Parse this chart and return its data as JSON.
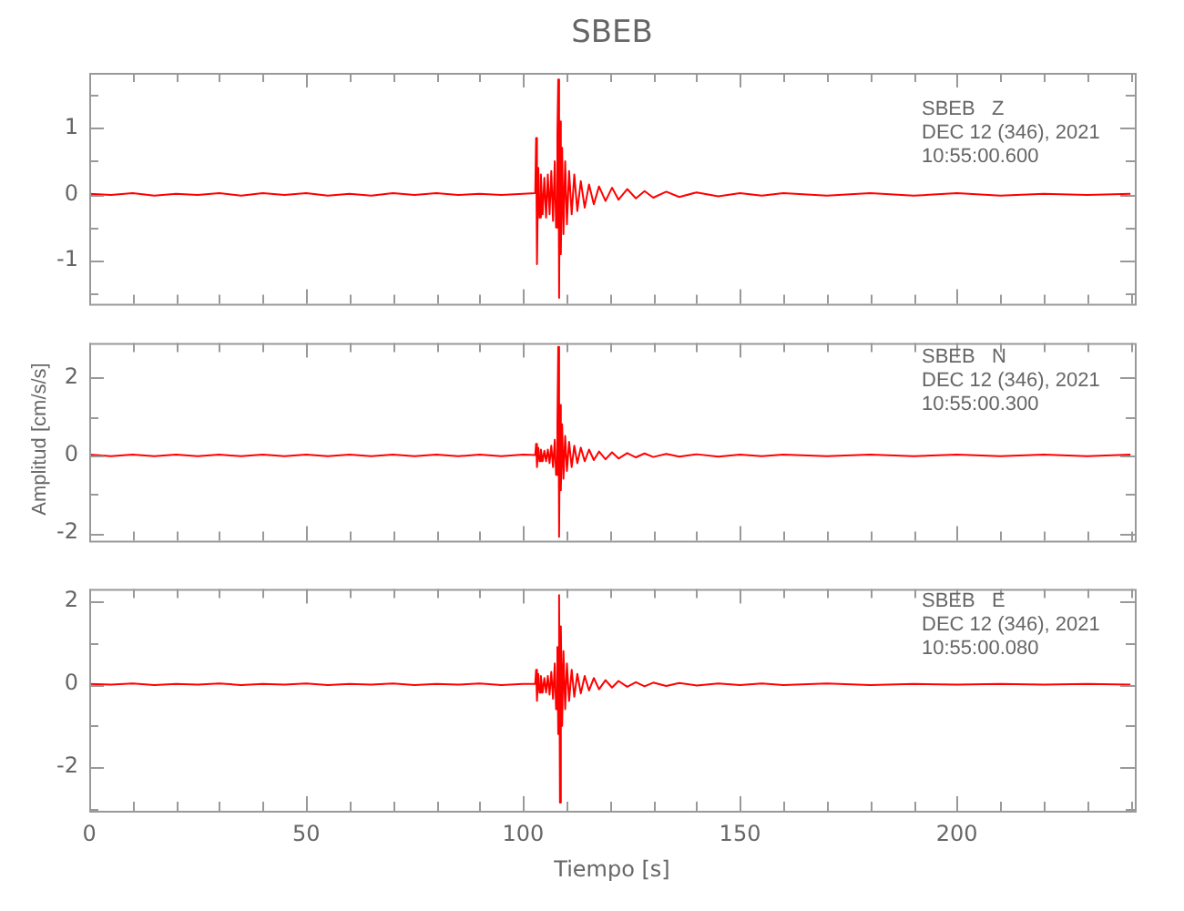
{
  "chart_data": [
    {
      "type": "line",
      "title": "SBEB",
      "annotations": [
        "SBEB   Z",
        "DEC 12 (346), 2021",
        "10:55:00.600"
      ],
      "tick_labels": "y",
      "grid": false,
      "legend": false,
      "xlim": [
        0,
        241
      ],
      "xticks": [
        0,
        {
          "value": 10,
          "label": null
        },
        {
          "value": 20,
          "label": null
        },
        {
          "value": 30,
          "label": null
        },
        {
          "value": 40,
          "label": null
        },
        50,
        {
          "value": 60,
          "label": null
        },
        {
          "value": 70,
          "label": null
        },
        {
          "value": 80,
          "label": null
        },
        {
          "value": 90,
          "label": null
        },
        100,
        {
          "value": 110,
          "label": null
        },
        {
          "value": 120,
          "label": null
        },
        {
          "value": 130,
          "label": null
        },
        {
          "value": 140,
          "label": null
        },
        150,
        {
          "value": 160,
          "label": null
        },
        {
          "value": 170,
          "label": null
        },
        {
          "value": 180,
          "label": null
        },
        {
          "value": 190,
          "label": null
        },
        200,
        {
          "value": 210,
          "label": null
        },
        {
          "value": 220,
          "label": null
        },
        {
          "value": 230,
          "label": null
        },
        {
          "value": 240,
          "label": null
        }
      ],
      "ylim": [
        -1.65,
        1.83
      ],
      "yticks": [
        {
          "value": -1.5,
          "label": null
        },
        -1,
        {
          "value": -0.5,
          "label": null
        },
        0,
        {
          "value": 0.5,
          "label": null
        },
        1,
        {
          "value": 1.5,
          "label": null
        }
      ],
      "x": [
        0,
        5,
        10,
        15,
        20,
        25,
        30,
        35,
        40,
        45,
        50,
        55,
        60,
        65,
        70,
        75,
        80,
        85,
        90,
        95,
        100,
        102.8,
        103.0,
        103.2,
        103.5,
        103.8,
        104.1,
        104.5,
        104.9,
        105.3,
        105.7,
        106.1,
        106.5,
        106.9,
        107.3,
        107.6,
        107.9,
        108.1,
        108.3,
        108.5,
        108.7,
        109,
        109.3,
        109.7,
        110.1,
        110.6,
        111.2,
        111.8,
        112.5,
        113.3,
        114.2,
        115.2,
        116.3,
        117.5,
        119,
        120.5,
        122,
        124,
        126,
        128,
        130,
        133,
        136,
        140,
        145,
        150,
        155,
        160,
        170,
        180,
        190,
        200,
        210,
        220,
        230,
        240
      ],
      "series": [
        {
          "color": "#ff0000",
          "values": [
            0.01,
            -0.01,
            0.02,
            -0.02,
            0.01,
            -0.01,
            0.02,
            -0.02,
            0.02,
            -0.01,
            0.02,
            -0.02,
            0.01,
            -0.02,
            0.02,
            -0.01,
            0.02,
            -0.01,
            0.01,
            -0.01,
            0.01,
            0.02,
            0.85,
            -1.05,
            0.4,
            -0.35,
            0.3,
            -0.3,
            0.25,
            -0.35,
            0.3,
            -0.3,
            0.35,
            -0.4,
            0.5,
            -0.5,
            0.9,
            1.73,
            -1.56,
            1.1,
            -0.9,
            0.7,
            -0.6,
            0.5,
            -0.45,
            0.35,
            -0.3,
            0.3,
            -0.25,
            0.2,
            -0.2,
            0.15,
            -0.15,
            0.12,
            -0.1,
            0.1,
            -0.08,
            0.08,
            -0.06,
            0.05,
            -0.05,
            0.04,
            -0.04,
            0.03,
            -0.03,
            0.02,
            -0.02,
            0.02,
            -0.02,
            0.02,
            -0.02,
            0.02,
            -0.02,
            0.01,
            -0.01,
            0.01
          ]
        }
      ]
    },
    {
      "type": "line",
      "ylabel": "Amplitud [cm/s/s]",
      "annotations": [
        "SBEB   N",
        "DEC 12 (346), 2021",
        "10:55:00.300"
      ],
      "tick_labels": "y",
      "grid": false,
      "legend": false,
      "xlim": [
        0,
        241
      ],
      "xticks": [
        0,
        {
          "value": 10,
          "label": null
        },
        {
          "value": 20,
          "label": null
        },
        {
          "value": 30,
          "label": null
        },
        {
          "value": 40,
          "label": null
        },
        50,
        {
          "value": 60,
          "label": null
        },
        {
          "value": 70,
          "label": null
        },
        {
          "value": 80,
          "label": null
        },
        {
          "value": 90,
          "label": null
        },
        100,
        {
          "value": 110,
          "label": null
        },
        {
          "value": 120,
          "label": null
        },
        {
          "value": 130,
          "label": null
        },
        {
          "value": 140,
          "label": null
        },
        150,
        {
          "value": 160,
          "label": null
        },
        {
          "value": 170,
          "label": null
        },
        {
          "value": 180,
          "label": null
        },
        {
          "value": 190,
          "label": null
        },
        200,
        {
          "value": 210,
          "label": null
        },
        {
          "value": 220,
          "label": null
        },
        {
          "value": 230,
          "label": null
        },
        {
          "value": 240,
          "label": null
        }
      ],
      "ylim": [
        -2.2,
        2.9
      ],
      "yticks": [
        -2,
        {
          "value": -1,
          "label": null
        },
        0,
        {
          "value": 1,
          "label": null
        },
        2
      ],
      "x": [
        0,
        5,
        10,
        15,
        20,
        25,
        30,
        35,
        40,
        45,
        50,
        55,
        60,
        65,
        70,
        75,
        80,
        85,
        90,
        95,
        100,
        102.8,
        103.0,
        103.2,
        103.5,
        103.8,
        104.1,
        104.5,
        104.9,
        105.3,
        105.7,
        106.1,
        106.5,
        106.9,
        107.3,
        107.6,
        107.9,
        108.1,
        108.3,
        108.5,
        108.7,
        109,
        109.3,
        109.7,
        110.1,
        110.6,
        111.2,
        111.8,
        112.5,
        113.3,
        114.2,
        115.2,
        116.3,
        117.5,
        119,
        120.5,
        122,
        124,
        126,
        128,
        130,
        133,
        136,
        140,
        145,
        150,
        155,
        160,
        170,
        180,
        190,
        200,
        210,
        220,
        230,
        240
      ],
      "series": [
        {
          "color": "#ff0000",
          "values": [
            0.02,
            -0.02,
            0.02,
            -0.02,
            0.02,
            -0.02,
            0.02,
            -0.02,
            0.02,
            -0.02,
            0.02,
            -0.02,
            0.02,
            -0.02,
            0.02,
            -0.02,
            0.02,
            -0.02,
            0.02,
            -0.02,
            0.02,
            0.01,
            0.3,
            -0.3,
            0.2,
            -0.15,
            0.15,
            -0.15,
            0.12,
            -0.15,
            0.15,
            -0.2,
            0.25,
            -0.3,
            0.4,
            -0.5,
            0.8,
            2.8,
            -2.1,
            1.3,
            -0.9,
            0.8,
            -0.6,
            0.5,
            -0.4,
            0.35,
            -0.3,
            0.25,
            -0.2,
            0.2,
            -0.15,
            0.15,
            -0.12,
            0.1,
            -0.1,
            0.08,
            -0.08,
            0.06,
            -0.05,
            0.05,
            -0.04,
            0.04,
            -0.03,
            0.03,
            -0.03,
            0.02,
            -0.02,
            0.02,
            -0.02,
            0.02,
            -0.02,
            0.02,
            -0.02,
            0.02,
            -0.02,
            0.02
          ]
        }
      ]
    },
    {
      "type": "line",
      "xlabel": "Tiempo [s]",
      "annotations": [
        "SBEB   E",
        "DEC 12 (346), 2021",
        "10:55:00.080"
      ],
      "grid": false,
      "legend": false,
      "xlim": [
        0,
        241
      ],
      "xticks": [
        0,
        {
          "value": 10,
          "label": null
        },
        {
          "value": 20,
          "label": null
        },
        {
          "value": 30,
          "label": null
        },
        {
          "value": 40,
          "label": null
        },
        50,
        {
          "value": 60,
          "label": null
        },
        {
          "value": 70,
          "label": null
        },
        {
          "value": 80,
          "label": null
        },
        {
          "value": 90,
          "label": null
        },
        100,
        {
          "value": 110,
          "label": null
        },
        {
          "value": 120,
          "label": null
        },
        {
          "value": 130,
          "label": null
        },
        {
          "value": 140,
          "label": null
        },
        150,
        {
          "value": 160,
          "label": null
        },
        {
          "value": 170,
          "label": null
        },
        {
          "value": 180,
          "label": null
        },
        {
          "value": 190,
          "label": null
        },
        200,
        {
          "value": 210,
          "label": null
        },
        {
          "value": 220,
          "label": null
        },
        {
          "value": 230,
          "label": null
        },
        {
          "value": 240,
          "label": null
        }
      ],
      "ylim": [
        -3.05,
        2.3
      ],
      "yticks": [
        {
          "value": -3,
          "label": null
        },
        -2,
        {
          "value": -1,
          "label": null
        },
        0,
        {
          "value": 1,
          "label": null
        },
        2
      ],
      "x": [
        0,
        5,
        10,
        15,
        20,
        25,
        30,
        35,
        40,
        45,
        50,
        55,
        60,
        65,
        70,
        75,
        80,
        85,
        90,
        95,
        100,
        102.8,
        103.0,
        103.2,
        103.5,
        103.8,
        104.1,
        104.5,
        104.9,
        105.3,
        105.7,
        106.1,
        106.5,
        106.9,
        107.3,
        107.6,
        107.9,
        108.1,
        108.3,
        108.5,
        108.7,
        109,
        109.3,
        109.7,
        110.1,
        110.6,
        111.2,
        111.8,
        112.5,
        113.3,
        114.2,
        115.2,
        116.3,
        117.5,
        119,
        120.5,
        122,
        124,
        126,
        128,
        130,
        133,
        136,
        140,
        145,
        150,
        155,
        160,
        170,
        180,
        190,
        200,
        210,
        220,
        230,
        240
      ],
      "series": [
        {
          "color": "#ff0000",
          "values": [
            0.01,
            -0.01,
            0.02,
            -0.02,
            0.01,
            -0.01,
            0.02,
            -0.02,
            0.01,
            -0.01,
            0.02,
            -0.02,
            0.01,
            -0.01,
            0.02,
            -0.02,
            0.01,
            -0.01,
            0.02,
            -0.02,
            0.01,
            0.01,
            0.35,
            -0.4,
            0.25,
            -0.2,
            0.2,
            -0.2,
            0.15,
            -0.2,
            0.2,
            -0.25,
            0.3,
            -0.35,
            0.5,
            -0.6,
            0.9,
            -1.2,
            2.15,
            -2.85,
            1.4,
            -1.0,
            0.8,
            -0.6,
            0.5,
            -0.4,
            0.35,
            -0.3,
            0.25,
            -0.22,
            0.2,
            -0.15,
            0.15,
            -0.12,
            0.1,
            -0.08,
            0.08,
            -0.06,
            0.05,
            -0.05,
            0.04,
            -0.04,
            0.03,
            -0.03,
            0.02,
            -0.02,
            0.02,
            -0.02,
            0.02,
            -0.02,
            0.01,
            -0.01,
            0.01,
            -0.01,
            0.01,
            -0.01
          ]
        }
      ]
    }
  ]
}
